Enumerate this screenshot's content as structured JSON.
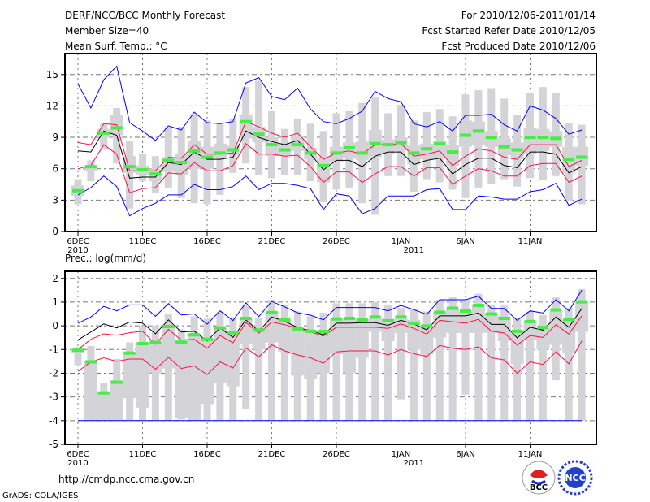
{
  "header": {
    "title": "DERF/NCC/BCC Monthly Forecast",
    "member_size": "Member Size=40",
    "variable": "Mean Surf. Temp.: °C",
    "period": "For 2010/12/06-2011/01/14",
    "started": "Fcst Started Refer Date 2010/12/05",
    "produced": "Fcst Produced Date 2010/12/06"
  },
  "footer": {
    "url": "http://cmdp.ncc.cma.gov.cn",
    "credit": "GrADS: COLA/IGES",
    "logo_left": "BCC",
    "logo_right": "NCC"
  },
  "colors": {
    "max_min": "#0000ff",
    "spread": "#ff1040",
    "mean": "#000000",
    "green": "#44ee44",
    "box": "#d3d3d8",
    "grid": "#777777"
  },
  "chart_data": [
    {
      "type": "line",
      "title": "Mean Surf. Temp.: °C",
      "ylim": [
        0,
        17
      ],
      "yticks": [
        0,
        3,
        6,
        9,
        12,
        15
      ],
      "xtick_days": [
        0,
        5,
        10,
        15,
        20,
        25,
        30,
        35
      ],
      "xtick_labels": [
        "6DEC",
        "11DEC",
        "16DEC",
        "21DEC",
        "26DEC",
        "1JAN",
        "6JAN",
        "11JAN"
      ],
      "xtick_sublabels": {
        "0": "2010",
        "26": "2011"
      },
      "grid": true,
      "days": 40,
      "series": [
        {
          "name": "max",
          "values": [
            14.1,
            11.8,
            14.5,
            15.8,
            10.4,
            9.6,
            8.7,
            10.1,
            9.7,
            11.4,
            10.4,
            10.3,
            10.5,
            14.2,
            14.7,
            12.9,
            12.6,
            13.7,
            11.7,
            10.5,
            10.3,
            10.8,
            11.5,
            13.4,
            12.7,
            12.4,
            10.3,
            10.0,
            10.5,
            9.6,
            11.1,
            11.1,
            11.2,
            10.2,
            9.6,
            12.0,
            11.6,
            10.8,
            9.3,
            9.7
          ]
        },
        {
          "name": "upper",
          "values": [
            8.5,
            8.3,
            10.3,
            10.2,
            5.8,
            5.8,
            5.8,
            7.1,
            7.0,
            8.3,
            7.4,
            7.4,
            7.5,
            10.5,
            10.0,
            9.4,
            9.0,
            9.4,
            8.1,
            6.9,
            7.5,
            7.7,
            7.4,
            8.3,
            8.3,
            8.4,
            7.2,
            7.4,
            7.7,
            6.3,
            7.2,
            7.9,
            7.7,
            7.1,
            6.9,
            8.3,
            8.3,
            8.3,
            6.2,
            6.8
          ]
        },
        {
          "name": "mean",
          "values": [
            7.7,
            7.6,
            9.6,
            9.2,
            5.1,
            5.2,
            5.2,
            6.6,
            6.4,
            7.6,
            6.9,
            6.9,
            7.1,
            9.6,
            9.0,
            8.6,
            8.3,
            8.7,
            7.4,
            5.9,
            6.8,
            6.8,
            6.2,
            7.2,
            7.6,
            7.6,
            6.4,
            6.8,
            7.0,
            5.5,
            6.4,
            7.0,
            7.0,
            6.3,
            6.1,
            7.6,
            7.6,
            7.4,
            5.6,
            6.2
          ]
        },
        {
          "name": "lower",
          "values": [
            6.0,
            6.3,
            8.3,
            7.4,
            3.7,
            4.1,
            4.2,
            5.6,
            5.5,
            6.6,
            5.8,
            5.8,
            6.3,
            8.4,
            7.4,
            7.4,
            7.2,
            7.3,
            6.2,
            4.7,
            5.7,
            5.7,
            4.7,
            5.5,
            6.2,
            6.2,
            5.3,
            6.1,
            6.1,
            4.5,
            5.3,
            6.0,
            5.8,
            5.3,
            5.3,
            6.3,
            6.5,
            6.5,
            4.7,
            5.3
          ]
        },
        {
          "name": "min",
          "values": [
            3.5,
            4.2,
            5.3,
            4.3,
            1.5,
            2.2,
            2.7,
            3.5,
            3.5,
            4.5,
            4.0,
            4.0,
            4.3,
            5.3,
            4.0,
            4.6,
            4.6,
            4.4,
            4.1,
            2.1,
            3.6,
            3.4,
            1.7,
            2.2,
            3.4,
            3.4,
            3.4,
            4.0,
            4.1,
            2.1,
            2.1,
            3.4,
            3.3,
            3.1,
            3.1,
            3.8,
            4.0,
            4.6,
            2.5,
            3.1
          ]
        },
        {
          "name": "green",
          "values": [
            3.9,
            6.2,
            9.4,
            9.9,
            6.2,
            5.9,
            5.5,
            6.8,
            6.6,
            7.7,
            7.1,
            7.5,
            7.8,
            10.5,
            9.3,
            8.3,
            7.8,
            8.3,
            7.5,
            6.3,
            7.5,
            8.0,
            7.5,
            8.4,
            8.3,
            8.5,
            7.5,
            7.9,
            8.4,
            7.6,
            9.2,
            9.6,
            9.0,
            8.1,
            7.8,
            9.0,
            9.0,
            8.9,
            6.9,
            7.1
          ]
        }
      ],
      "boxes": [
        [
          2.6,
          3.4,
          4.4,
          5.0
        ],
        [
          4.8,
          5.8,
          6.3,
          6.8
        ],
        [
          7.8,
          9.0,
          9.8,
          10.3
        ],
        [
          6.5,
          9.2,
          11.1,
          11.8
        ],
        [
          2.2,
          5.6,
          7.2,
          8.6
        ],
        [
          4.8,
          5.4,
          6.3,
          7.4
        ],
        [
          3.7,
          4.8,
          6.0,
          7.2
        ],
        [
          4.2,
          5.7,
          7.1,
          10.0
        ],
        [
          3.2,
          5.4,
          7.4,
          10.0
        ],
        [
          2.7,
          6.0,
          8.7,
          11.2
        ],
        [
          2.6,
          6.0,
          8.1,
          10.6
        ],
        [
          3.5,
          7.0,
          8.4,
          10.4
        ],
        [
          5.6,
          7.3,
          8.2,
          10.8
        ],
        [
          6.5,
          8.9,
          11.2,
          13.8
        ],
        [
          5.4,
          8.5,
          10.0,
          14.4
        ],
        [
          5.1,
          7.2,
          9.0,
          11.5
        ],
        [
          5.4,
          7.3,
          8.4,
          9.8
        ],
        [
          5.4,
          7.7,
          9.1,
          10.8
        ],
        [
          4.8,
          6.9,
          8.0,
          10.3
        ],
        [
          2.8,
          4.7,
          7.0,
          9.6
        ],
        [
          4.0,
          6.7,
          8.1,
          11.3
        ],
        [
          4.2,
          7.0,
          8.5,
          11.5
        ],
        [
          2.7,
          6.8,
          8.6,
          12.3
        ],
        [
          1.6,
          7.1,
          9.7,
          12.8
        ],
        [
          5.3,
          7.4,
          8.8,
          11.3
        ],
        [
          5.3,
          7.7,
          9.0,
          12.1
        ],
        [
          3.8,
          6.4,
          8.2,
          10.6
        ],
        [
          5.0,
          6.9,
          8.4,
          11.4
        ],
        [
          4.7,
          7.0,
          8.7,
          11.7
        ],
        [
          4.0,
          6.3,
          8.3,
          11.0
        ],
        [
          3.2,
          8.1,
          10.6,
          13.1
        ],
        [
          4.2,
          8.3,
          10.5,
          13.5
        ],
        [
          4.5,
          8.1,
          9.6,
          13.7
        ],
        [
          5.0,
          7.3,
          8.9,
          12.7
        ],
        [
          4.3,
          6.9,
          8.5,
          11.1
        ],
        [
          5.1,
          7.4,
          9.9,
          13.2
        ],
        [
          4.9,
          7.7,
          9.8,
          13.8
        ],
        [
          5.3,
          8.1,
          9.6,
          13.2
        ],
        [
          2.9,
          5.6,
          8.1,
          10.4
        ],
        [
          2.6,
          6.3,
          8.1,
          10.2
        ]
      ]
    },
    {
      "type": "line",
      "title": "Prec.: log(mm/d)",
      "ylim": [
        -5,
        2.3
      ],
      "yticks": [
        -5,
        -4,
        -3,
        -2,
        -1,
        0,
        1,
        2
      ],
      "xtick_days": [
        0,
        5,
        10,
        15,
        20,
        25,
        30,
        35
      ],
      "xtick_labels": [
        "6DEC",
        "11DEC",
        "16DEC",
        "21DEC",
        "26DEC",
        "1JAN",
        "6JAN",
        "11JAN"
      ],
      "xtick_sublabels": {
        "0": "2010",
        "26": "2011"
      },
      "grid": true,
      "days": 40,
      "series": [
        {
          "name": "max",
          "values": [
            0.11,
            0.37,
            0.82,
            0.63,
            0.88,
            0.88,
            0.4,
            0.94,
            0.46,
            0.5,
            0.07,
            0.63,
            0.22,
            0.97,
            0.39,
            1.03,
            0.8,
            0.55,
            0.45,
            0.25,
            0.77,
            0.77,
            0.77,
            0.77,
            0.63,
            0.86,
            0.68,
            0.48,
            1.1,
            1.1,
            1.1,
            1.25,
            0.73,
            0.73,
            0.23,
            0.63,
            0.54,
            1.1,
            0.63,
            1.5
          ]
        },
        {
          "name": "upper",
          "values": [
            -1.0,
            -0.57,
            -0.34,
            -0.4,
            -0.29,
            -0.23,
            -0.78,
            -0.15,
            -0.6,
            -0.57,
            -0.95,
            -0.41,
            -0.72,
            0.14,
            -0.32,
            0.16,
            0.05,
            -0.11,
            -0.26,
            -0.43,
            -0.06,
            -0.06,
            -0.06,
            -0.06,
            -0.11,
            0.08,
            -0.11,
            -0.35,
            0.23,
            0.17,
            0.11,
            0.27,
            -0.23,
            -0.3,
            -0.81,
            -0.41,
            -0.49,
            0.05,
            -0.35,
            0.42
          ]
        },
        {
          "name": "mean",
          "values": [
            -0.6,
            -0.26,
            0.08,
            -0.09,
            0.16,
            0.11,
            -0.34,
            0.25,
            -0.26,
            -0.23,
            -0.64,
            -0.09,
            -0.49,
            0.25,
            -0.23,
            0.37,
            0.19,
            -0.07,
            -0.2,
            -0.38,
            0.11,
            0.11,
            0.13,
            0.13,
            0.02,
            0.23,
            0.08,
            -0.17,
            0.42,
            0.42,
            0.42,
            0.54,
            0.06,
            0.06,
            -0.51,
            -0.06,
            -0.18,
            0.37,
            -0.06,
            0.73
          ]
        },
        {
          "name": "lower",
          "values": [
            -1.92,
            -1.52,
            -1.35,
            -1.5,
            -1.4,
            -1.4,
            -1.83,
            -1.33,
            -1.8,
            -1.69,
            -2.06,
            -1.52,
            -1.78,
            -0.93,
            -1.31,
            -0.8,
            -1.06,
            -1.23,
            -1.35,
            -1.58,
            -1.1,
            -1.06,
            -1.06,
            -1.06,
            -1.23,
            -1.0,
            -1.18,
            -1.29,
            -0.83,
            -0.95,
            -1.0,
            -0.89,
            -1.35,
            -1.44,
            -2.0,
            -1.52,
            -1.63,
            -1.1,
            -1.6,
            -0.64
          ]
        },
        {
          "name": "min",
          "values": [
            -4,
            -4,
            -4,
            -4,
            -4,
            -4,
            -4,
            -4,
            -4,
            -4,
            -4,
            -4,
            -4,
            -4,
            -4,
            -4,
            -4,
            -4,
            -4,
            -4,
            -4,
            -4,
            -4,
            -4,
            -4,
            -4,
            -4,
            -4,
            -4,
            -4,
            -4,
            -4,
            -4,
            -4,
            -4,
            -4,
            -4,
            -4,
            -4,
            -4
          ]
        },
        {
          "name": "green",
          "values": [
            -1.03,
            -1.52,
            -2.83,
            -2.38,
            -1.15,
            -0.75,
            -0.7,
            -0.03,
            -0.69,
            -0.38,
            -0.57,
            -0.09,
            -0.29,
            0.31,
            -0.18,
            0.56,
            0.25,
            -0.13,
            -0.23,
            -0.24,
            0.29,
            0.31,
            0.25,
            0.37,
            0.21,
            0.37,
            0.11,
            -0.01,
            0.57,
            0.74,
            0.62,
            0.86,
            0.5,
            0.31,
            -0.23,
            0.18,
            -0.07,
            0.67,
            0.27,
            1.01
          ]
        }
      ],
      "boxes": [
        [
          -1.65,
          -1.15,
          -1.0,
          -0.9
        ],
        [
          -4,
          -4,
          -1.5,
          -0.85
        ],
        [
          -4,
          -4,
          -2.8,
          -2.4
        ],
        [
          -4,
          -4,
          -2.3,
          -1.4
        ],
        [
          -4,
          -3.05,
          -1.1,
          -0.7
        ],
        [
          -4,
          -3.45,
          -0.7,
          0.0
        ],
        [
          -4,
          -2.0,
          -0.7,
          0.0
        ],
        [
          -4,
          -1.8,
          -0.05,
          0.5
        ],
        [
          -3.95,
          -3.9,
          -0.6,
          -0.15
        ],
        [
          -4,
          -4,
          -0.35,
          0.4
        ],
        [
          -4,
          -3.3,
          -0.55,
          0.3
        ],
        [
          -4,
          -2.4,
          -0.1,
          0.6
        ],
        [
          -4,
          -2.55,
          -0.25,
          0.35
        ],
        [
          -3.5,
          -0.75,
          0.3,
          0.85
        ],
        [
          -4,
          -1.0,
          -0.1,
          0.35
        ],
        [
          -4,
          -0.7,
          0.6,
          1.1
        ],
        [
          -4,
          -1.1,
          0.25,
          0.9
        ],
        [
          -4,
          -2.1,
          -0.1,
          0.6
        ],
        [
          -4,
          -2.25,
          -0.2,
          0.4
        ],
        [
          -4,
          -2.0,
          -0.2,
          0.55
        ],
        [
          -4,
          -1.2,
          0.3,
          0.95
        ],
        [
          -4,
          -2.0,
          0.3,
          0.95
        ],
        [
          -4,
          -1.35,
          0.3,
          0.95
        ],
        [
          -4,
          -0.25,
          0.3,
          1.0
        ],
        [
          -4,
          -0.65,
          0.3,
          0.9
        ],
        [
          -3.1,
          -0.3,
          0.3,
          0.75
        ],
        [
          -4,
          -1.0,
          0.25,
          0.7
        ],
        [
          -4,
          -1.2,
          0.0,
          0.6
        ],
        [
          -4,
          -0.5,
          0.6,
          1.1
        ],
        [
          -4,
          -0.3,
          0.75,
          1.2
        ],
        [
          -2.9,
          -0.3,
          0.6,
          1.1
        ],
        [
          -4,
          -0.3,
          0.9,
          1.35
        ],
        [
          -4,
          -0.3,
          0.5,
          0.9
        ],
        [
          -4,
          -0.65,
          0.4,
          0.85
        ],
        [
          -4,
          -1.6,
          -0.2,
          0.35
        ],
        [
          -4,
          -0.6,
          0.15,
          0.6
        ],
        [
          -4,
          -1.0,
          -0.1,
          0.45
        ],
        [
          -2.3,
          -0.8,
          0.6,
          1.2
        ],
        [
          -4,
          -1.15,
          0.25,
          0.75
        ],
        [
          -4,
          -0.25,
          1.05,
          1.55
        ]
      ]
    }
  ]
}
